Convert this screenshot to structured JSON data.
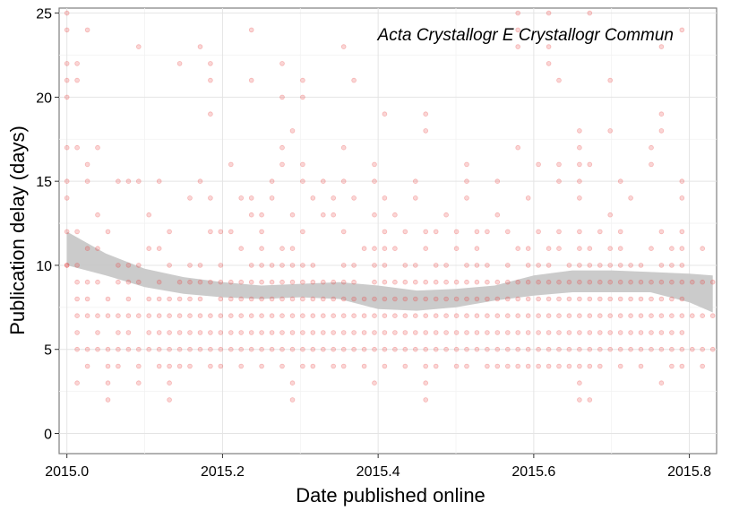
{
  "chart_data": {
    "type": "scatter",
    "title": "",
    "annotation": "Acta Crystallogr E Crystallogr Commun",
    "xlabel": "Date published online",
    "ylabel": "Publication delay (days)",
    "xlim": [
      1999.99,
      2015.835
    ],
    "xlim_note": "",
    "x_ticks": [
      2015.0,
      2015.2,
      2015.4,
      2015.6,
      2015.8
    ],
    "x_tick_labels": [
      "2015.0",
      "2015.2",
      "2015.4",
      "2015.6",
      "2015.8"
    ],
    "ylim": [
      -1.2,
      25.3
    ],
    "y_ticks": [
      0,
      5,
      10,
      15,
      20,
      25
    ],
    "y_tick_labels": [
      "0",
      "5",
      "10",
      "15",
      "20",
      "25"
    ],
    "grid": true,
    "point_color": "#e8423f",
    "smooth_color": "#c8c8c8",
    "smooth_line": {
      "x": [
        2015.0,
        2015.05,
        2015.1,
        2015.15,
        2015.2,
        2015.25,
        2015.3,
        2015.35,
        2015.4,
        2015.45,
        2015.5,
        2015.55,
        2015.6,
        2015.65,
        2015.7,
        2015.75,
        2015.8,
        2015.83
      ],
      "y": [
        11.0,
        10.0,
        9.2,
        8.8,
        8.5,
        8.4,
        8.5,
        8.6,
        8.2,
        7.9,
        8.0,
        8.3,
        8.8,
        9.0,
        9.0,
        9.0,
        8.8,
        8.3
      ],
      "lower": [
        10.0,
        9.4,
        8.7,
        8.3,
        8.1,
        8.0,
        8.1,
        8.0,
        7.4,
        7.3,
        7.5,
        7.9,
        8.2,
        8.4,
        8.4,
        8.4,
        7.8,
        7.2
      ],
      "upper": [
        12.0,
        10.7,
        9.8,
        9.3,
        9.0,
        8.8,
        8.9,
        9.0,
        8.8,
        8.5,
        8.6,
        8.8,
        9.4,
        9.7,
        9.7,
        9.6,
        9.5,
        9.4
      ]
    },
    "points": {
      "x_start": 2015.0,
      "x_end": 2015.83,
      "columns": 64,
      "y_values_by_column": [
        [
          12,
          10,
          10,
          15,
          17,
          22,
          21,
          25,
          24,
          20,
          14
        ],
        [
          5,
          7,
          10,
          8,
          12,
          9,
          17,
          22,
          21,
          3,
          6
        ],
        [
          4,
          5,
          8,
          9,
          11,
          7,
          15,
          16,
          24
        ],
        [
          5,
          6,
          7,
          9,
          11,
          13,
          17
        ],
        [
          2,
          3,
          4,
          5,
          7,
          8,
          12
        ],
        [
          4,
          5,
          6,
          7,
          9,
          10,
          15
        ],
        [
          5,
          6,
          7,
          8,
          9,
          10,
          15
        ],
        [
          3,
          4,
          5,
          7,
          9,
          10,
          23,
          15
        ],
        [
          5,
          6,
          7,
          8,
          11,
          13
        ],
        [
          4,
          5,
          6,
          7,
          8,
          9,
          11,
          15
        ],
        [
          2,
          3,
          4,
          5,
          6,
          7,
          8,
          10,
          12
        ],
        [
          4,
          5,
          6,
          7,
          8,
          9,
          22
        ],
        [
          4,
          5,
          6,
          7,
          8,
          9,
          10,
          14
        ],
        [
          5,
          6,
          7,
          8,
          9,
          10,
          23,
          15
        ],
        [
          4,
          5,
          6,
          7,
          9,
          12,
          14,
          19,
          21,
          22
        ],
        [
          4,
          5,
          6,
          7,
          8,
          9,
          10,
          12
        ],
        [
          5,
          6,
          7,
          8,
          9,
          12,
          16
        ],
        [
          4,
          5,
          6,
          7,
          8,
          9,
          11,
          14
        ],
        [
          5,
          6,
          7,
          8,
          9,
          10,
          13,
          14,
          21,
          24
        ],
        [
          4,
          5,
          6,
          7,
          8,
          9,
          10,
          11,
          12,
          13
        ],
        [
          5,
          6,
          7,
          8,
          9,
          10,
          14,
          15
        ],
        [
          4,
          5,
          6,
          7,
          8,
          9,
          10,
          11,
          16,
          17,
          20,
          22
        ],
        [
          2,
          3,
          5,
          6,
          7,
          8,
          9,
          10,
          11,
          13,
          18
        ],
        [
          4,
          5,
          6,
          7,
          8,
          9,
          10,
          12,
          15,
          16,
          20,
          21
        ],
        [
          4,
          5,
          6,
          7,
          8,
          9,
          10,
          14
        ],
        [
          5,
          6,
          7,
          8,
          9,
          13,
          15
        ],
        [
          4,
          5,
          6,
          7,
          8,
          9,
          13,
          14
        ],
        [
          4,
          5,
          6,
          7,
          8,
          9,
          10,
          12,
          15,
          17,
          23
        ],
        [
          5,
          6,
          7,
          8,
          9,
          10,
          14,
          21
        ],
        [
          4,
          5,
          6,
          7,
          8,
          11
        ],
        [
          3,
          5,
          6,
          7,
          8,
          9,
          10,
          11,
          13,
          15,
          16
        ],
        [
          4,
          5,
          6,
          7,
          8,
          9,
          10,
          11,
          12,
          14,
          19
        ],
        [
          5,
          6,
          7,
          8,
          9,
          11,
          13
        ],
        [
          4,
          5,
          6,
          7,
          8,
          9,
          10,
          12
        ],
        [
          5,
          6,
          7,
          8,
          9,
          10,
          14,
          15
        ],
        [
          2,
          3,
          4,
          5,
          6,
          7,
          8,
          9,
          11,
          12,
          18,
          19
        ],
        [
          4,
          5,
          6,
          7,
          8,
          9,
          10,
          12
        ],
        [
          5,
          6,
          7,
          8,
          9,
          10,
          13
        ],
        [
          4,
          5,
          6,
          7,
          8,
          9,
          11,
          12
        ],
        [
          4,
          5,
          6,
          7,
          8,
          9,
          10,
          14,
          15,
          16
        ],
        [
          5,
          6,
          7,
          8,
          9,
          10,
          11,
          12
        ],
        [
          4,
          5,
          6,
          7,
          8,
          9,
          10,
          12
        ],
        [
          4,
          5,
          6,
          7,
          8,
          9,
          13,
          15
        ],
        [
          4,
          5,
          6,
          7,
          8,
          9,
          10,
          12
        ],
        [
          4,
          5,
          6,
          7,
          8,
          9,
          11,
          17,
          23,
          24,
          25
        ],
        [
          4,
          5,
          6,
          7,
          8,
          9,
          10,
          11,
          14
        ],
        [
          4,
          5,
          6,
          7,
          8,
          9,
          10,
          12,
          16
        ],
        [
          4,
          5,
          6,
          7,
          8,
          9,
          10,
          11,
          22,
          23,
          25
        ],
        [
          4,
          5,
          6,
          7,
          8,
          9,
          11,
          12,
          15,
          16,
          21
        ],
        [
          4,
          5,
          6,
          7,
          8,
          9,
          10
        ],
        [
          2,
          3,
          4,
          5,
          6,
          7,
          8,
          9,
          10,
          11,
          12,
          14,
          15,
          16,
          17,
          18
        ],
        [
          2,
          4,
          5,
          6,
          7,
          8,
          9,
          10,
          11,
          16,
          25
        ],
        [
          4,
          5,
          6,
          7,
          8,
          9,
          10,
          12
        ],
        [
          5,
          6,
          7,
          8,
          9,
          10,
          11,
          13,
          18,
          21
        ],
        [
          4,
          5,
          6,
          7,
          8,
          9,
          10,
          11,
          12,
          15
        ],
        [
          5,
          6,
          7,
          8,
          9,
          10,
          14
        ],
        [
          4,
          5,
          6,
          7,
          8,
          9,
          10
        ],
        [
          5,
          6,
          7,
          8,
          9,
          11,
          16,
          17
        ],
        [
          3,
          5,
          6,
          7,
          8,
          9,
          10,
          12,
          18,
          19,
          23
        ],
        [
          4,
          5,
          6,
          7,
          8,
          9,
          10,
          11
        ],
        [
          4,
          5,
          6,
          7,
          8,
          9,
          10,
          11,
          12,
          14,
          15,
          24
        ],
        [
          5,
          7,
          9
        ],
        [
          4,
          5,
          7,
          9,
          11
        ],
        [
          5,
          7,
          9
        ]
      ]
    }
  }
}
